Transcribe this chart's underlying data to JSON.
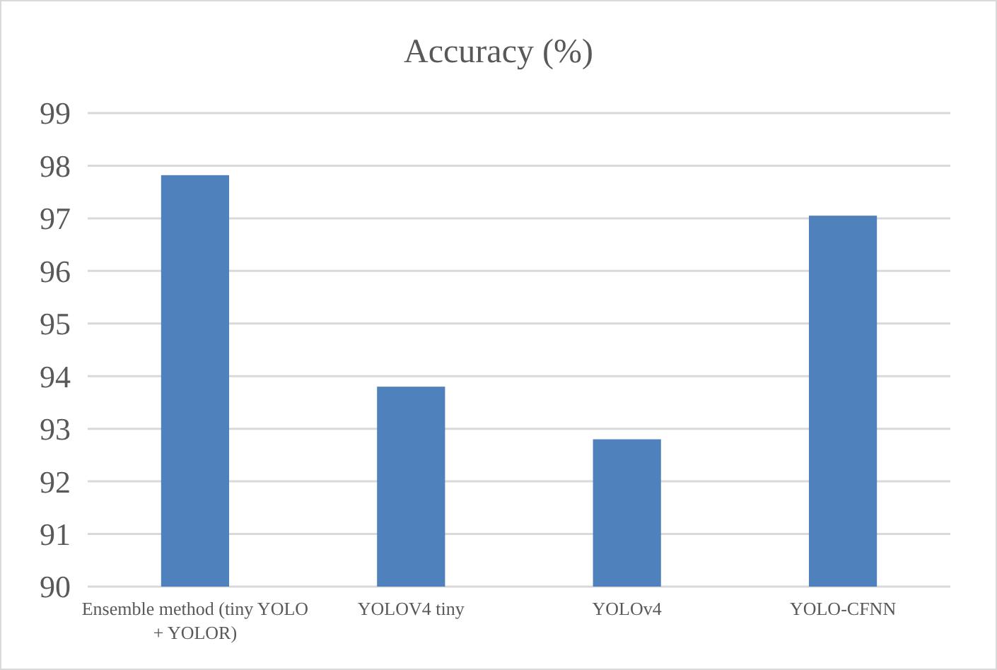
{
  "chart_data": {
    "type": "bar",
    "title": "Accuracy (%)",
    "categories": [
      "Ensemble method (tiny YOLO + YOLOR)",
      "YOLOV4 tiny",
      "YOLOv4",
      "YOLO-CFNN"
    ],
    "values": [
      97.82,
      93.8,
      92.8,
      97.05
    ],
    "color": "#4f81bd",
    "ylim": [
      90,
      99
    ],
    "yticks": [
      90,
      91,
      92,
      93,
      94,
      95,
      96,
      97,
      98,
      99
    ],
    "grid": "y"
  }
}
